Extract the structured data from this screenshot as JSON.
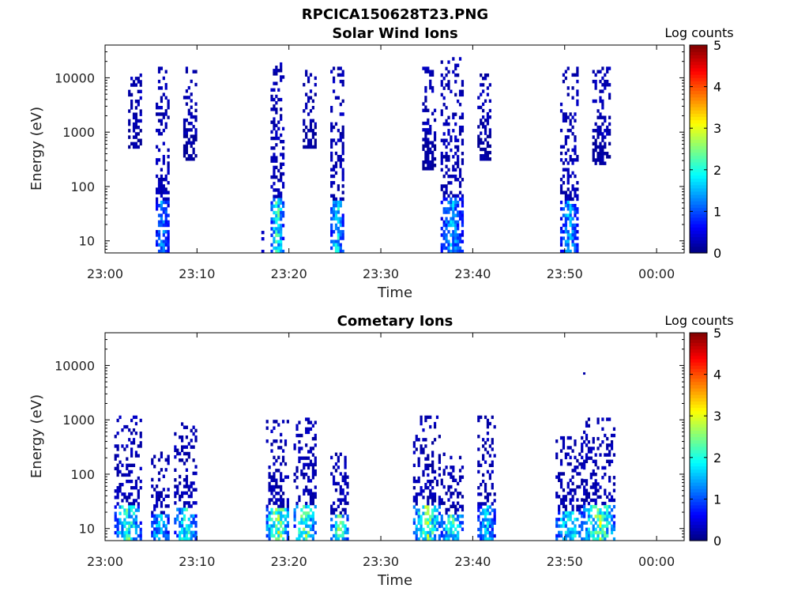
{
  "figure_title": "RPCICA150628T23.PNG",
  "chart_data": [
    {
      "type": "heatmap",
      "title": "Solar Wind Ions",
      "xlabel": "Time",
      "ylabel": "Energy (eV)",
      "x_scale": "time",
      "y_scale": "log",
      "xlim": [
        "23:00",
        "00:03"
      ],
      "ylim": [
        6,
        40000
      ],
      "x_ticks": [
        "23:00",
        "23:10",
        "23:20",
        "23:30",
        "23:40",
        "23:50",
        "00:00"
      ],
      "y_ticks": [
        "10",
        "100",
        "1000",
        "10000"
      ],
      "colorbar": {
        "label": "Log counts",
        "range": [
          0,
          5
        ],
        "ticks": [
          "0",
          "1",
          "2",
          "3",
          "4",
          "5"
        ]
      },
      "bursts": [
        {
          "time_min": [
            2.5,
            4.0
          ],
          "energy_ev": [
            500,
            12000
          ],
          "peak_log_counts": 0.3
        },
        {
          "time_min": [
            5.5,
            7.0
          ],
          "energy_ev": [
            6,
            16000
          ],
          "peak_log_counts": 1.8
        },
        {
          "time_min": [
            8.5,
            10.0
          ],
          "energy_ev": [
            300,
            16000
          ],
          "peak_log_counts": 0.3
        },
        {
          "time_min": [
            17.0,
            17.3
          ],
          "energy_ev": [
            6,
            20
          ],
          "peak_log_counts": 0.4
        },
        {
          "time_min": [
            18.0,
            19.5
          ],
          "energy_ev": [
            6,
            22000
          ],
          "peak_log_counts": 2.8
        },
        {
          "time_min": [
            21.5,
            23.0
          ],
          "energy_ev": [
            500,
            14000
          ],
          "peak_log_counts": 0.3
        },
        {
          "time_min": [
            24.5,
            26.0
          ],
          "energy_ev": [
            6,
            16000
          ],
          "peak_log_counts": 2.4
        },
        {
          "time_min": [
            34.5,
            36.0
          ],
          "energy_ev": [
            200,
            16000
          ],
          "peak_log_counts": 0.3
        },
        {
          "time_min": [
            36.5,
            39.0
          ],
          "energy_ev": [
            6,
            24000
          ],
          "peak_log_counts": 2.0
        },
        {
          "time_min": [
            40.5,
            42.0
          ],
          "energy_ev": [
            300,
            12000
          ],
          "peak_log_counts": 0.3
        },
        {
          "time_min": [
            49.5,
            51.5
          ],
          "energy_ev": [
            6,
            16000
          ],
          "peak_log_counts": 2.0
        },
        {
          "time_min": [
            53.0,
            55.0
          ],
          "energy_ev": [
            250,
            16000
          ],
          "peak_log_counts": 0.3
        }
      ]
    },
    {
      "type": "heatmap",
      "title": "Cometary Ions",
      "xlabel": "Time",
      "ylabel": "Energy (eV)",
      "x_scale": "time",
      "y_scale": "log",
      "xlim": [
        "23:00",
        "00:03"
      ],
      "ylim": [
        6,
        40000
      ],
      "x_ticks": [
        "23:00",
        "23:10",
        "23:20",
        "23:30",
        "23:40",
        "23:50",
        "00:00"
      ],
      "y_ticks": [
        "10",
        "100",
        "1000",
        "10000"
      ],
      "colorbar": {
        "label": "Log counts",
        "range": [
          0,
          5
        ],
        "ticks": [
          "0",
          "1",
          "2",
          "3",
          "4",
          "5"
        ]
      },
      "bursts": [
        {
          "time_min": [
            1.0,
            4.0
          ],
          "energy_ev": [
            6,
            1200
          ],
          "peak_log_counts": 2.8
        },
        {
          "time_min": [
            5.0,
            7.0
          ],
          "energy_ev": [
            6,
            300
          ],
          "peak_log_counts": 2.5
        },
        {
          "time_min": [
            7.5,
            10.0
          ],
          "energy_ev": [
            6,
            900
          ],
          "peak_log_counts": 2.8
        },
        {
          "time_min": [
            17.5,
            20.0
          ],
          "energy_ev": [
            6,
            1000
          ],
          "peak_log_counts": 3.6
        },
        {
          "time_min": [
            20.5,
            23.0
          ],
          "energy_ev": [
            6,
            1100
          ],
          "peak_log_counts": 3.2
        },
        {
          "time_min": [
            24.5,
            26.5
          ],
          "energy_ev": [
            6,
            250
          ],
          "peak_log_counts": 3.0
        },
        {
          "time_min": [
            33.5,
            36.5
          ],
          "energy_ev": [
            6,
            1200
          ],
          "peak_log_counts": 3.3
        },
        {
          "time_min": [
            36.5,
            39.0
          ],
          "energy_ev": [
            6,
            250
          ],
          "peak_log_counts": 2.8
        },
        {
          "time_min": [
            40.5,
            42.5
          ],
          "energy_ev": [
            6,
            1200
          ],
          "peak_log_counts": 2.2
        },
        {
          "time_min": [
            49.0,
            52.0
          ],
          "energy_ev": [
            6,
            500
          ],
          "peak_log_counts": 2.8
        },
        {
          "time_min": [
            52.0,
            55.5
          ],
          "energy_ev": [
            6,
            1100
          ],
          "peak_log_counts": 3.3
        }
      ],
      "isolated_points": [
        {
          "time_min": 52.0,
          "energy_ev": 7000,
          "log_counts": 0.2
        }
      ]
    }
  ]
}
